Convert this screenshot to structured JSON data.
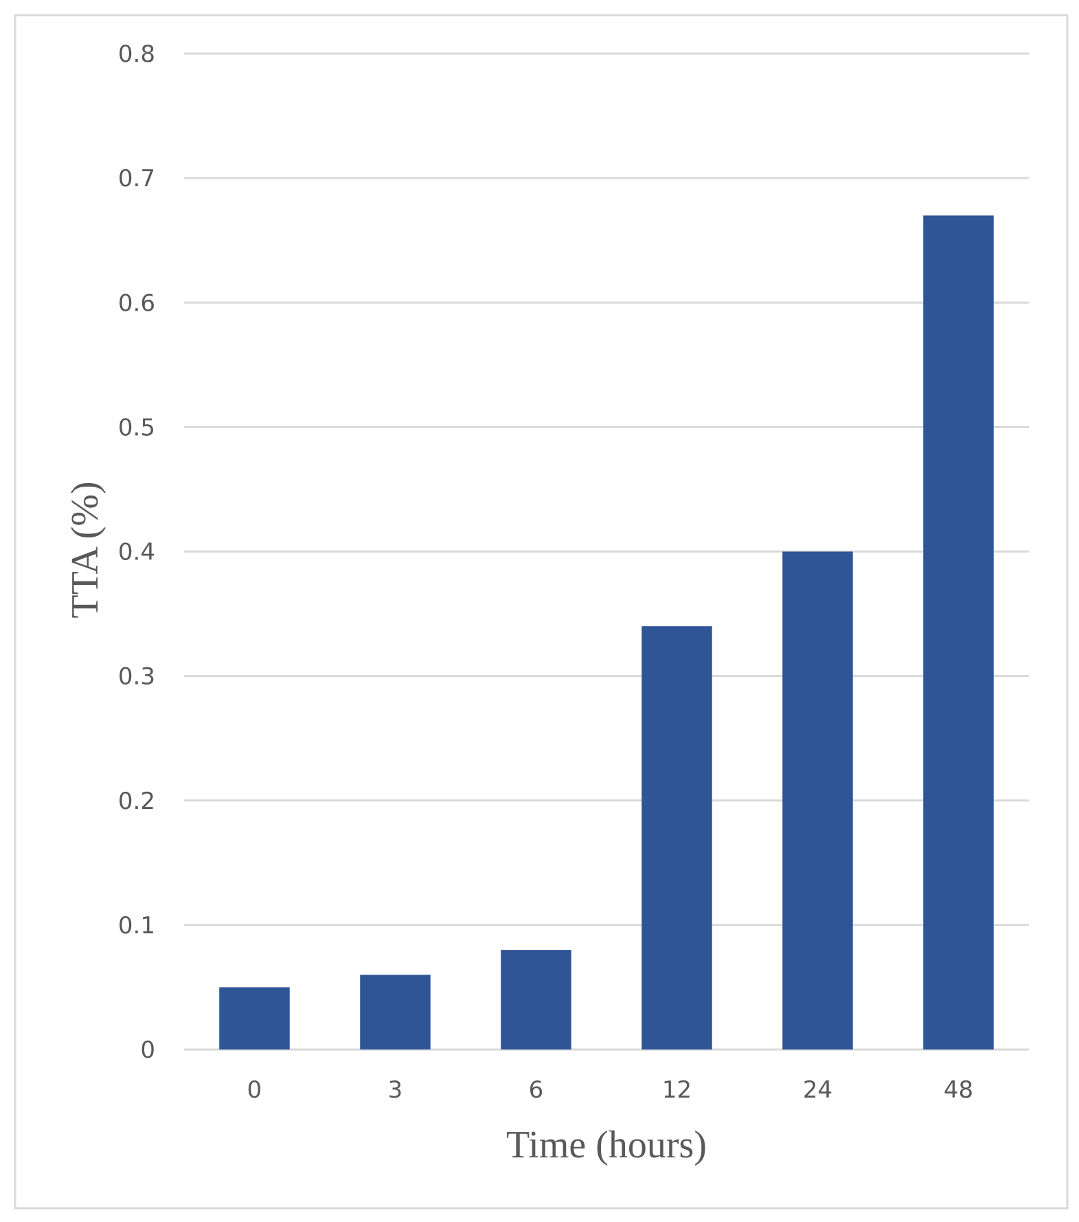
{
  "chart_data": {
    "type": "bar",
    "title": "",
    "xlabel": "Time (hours)",
    "ylabel": "TTA (%)",
    "categories": [
      "0",
      "3",
      "6",
      "12",
      "24",
      "48"
    ],
    "values": [
      0.05,
      0.06,
      0.08,
      0.34,
      0.4,
      0.67
    ],
    "ylim": [
      0,
      0.8
    ],
    "yticks": [
      "0",
      "0.1",
      "0.2",
      "0.3",
      "0.4",
      "0.5",
      "0.6",
      "0.7",
      "0.8"
    ],
    "grid": true,
    "legend": "none",
    "colors": {
      "bar": "#2F5597",
      "grid": "#D9D9D9",
      "text": "#595959",
      "border": "#D9D9D9"
    }
  }
}
